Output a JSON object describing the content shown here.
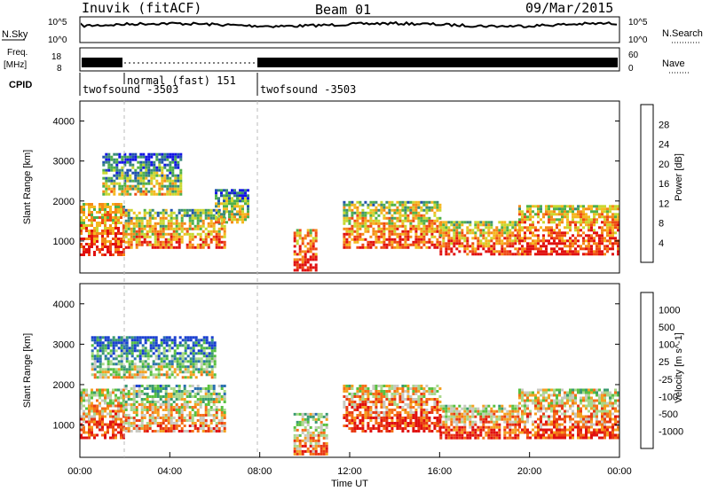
{
  "header": {
    "station": "Inuvik (fitACF)",
    "beam": "Beam 01",
    "date": "09/Mar/2015"
  },
  "top_panels": {
    "nsky_label": "N.Sky",
    "nsearch_label": "N.Search",
    "nsky_ticks": [
      "10^5",
      "10^0"
    ],
    "nsearch_ticks": [
      "10^5",
      "10^0"
    ],
    "freq_label_1": "Freq.",
    "freq_label_2": "[MHz]",
    "freq_ticks": [
      "18",
      "8"
    ],
    "nave_label": "Nave",
    "nave_ticks": [
      "60",
      "0"
    ],
    "cpid_label": "CPID",
    "cpid_segments": [
      {
        "text": "twofsound -3503"
      },
      {
        "text": "normal (fast) 151"
      },
      {
        "text": "twofsound -3503"
      }
    ]
  },
  "chart_data": [
    {
      "type": "heatmap",
      "title": "",
      "ylabel": "Slant Range [km]",
      "xlabel": "",
      "ylim": [
        200,
        4500
      ],
      "xlim": [
        "00:00",
        "24:00"
      ],
      "y_ticks": [
        "1000",
        "2000",
        "3000",
        "4000"
      ],
      "colorbar": {
        "label": "Power [dB]",
        "ticks": [
          "4",
          "8",
          "12",
          "16",
          "20",
          "24",
          "28"
        ],
        "colors": [
          "#1414e6",
          "#2050b0",
          "#3a8a7a",
          "#4fb04a",
          "#c8d830",
          "#f5b820",
          "#f58a18",
          "#ee4a14",
          "#e01010"
        ]
      },
      "patches": [
        {
          "t": [
            0.0,
            2.0
          ],
          "r": [
            650,
            1950
          ],
          "level": 0.75
        },
        {
          "t": [
            2.0,
            6.5
          ],
          "r": [
            850,
            1800
          ],
          "level": 0.6
        },
        {
          "t": [
            1.0,
            4.5
          ],
          "r": [
            2200,
            3200
          ],
          "level": 0.35
        },
        {
          "t": [
            6.0,
            7.5
          ],
          "r": [
            1500,
            2300
          ],
          "level": 0.4
        },
        {
          "t": [
            9.5,
            10.5
          ],
          "r": [
            250,
            1300
          ],
          "level": 0.85
        },
        {
          "t": [
            11.7,
            16.0
          ],
          "r": [
            850,
            2000
          ],
          "level": 0.65
        },
        {
          "t": [
            16.0,
            19.5
          ],
          "r": [
            700,
            1500
          ],
          "level": 0.7
        },
        {
          "t": [
            19.5,
            24.0
          ],
          "r": [
            700,
            1900
          ],
          "level": 0.75
        }
      ]
    },
    {
      "type": "heatmap",
      "title": "",
      "ylabel": "Slant Range [km]",
      "xlabel": "Time UT",
      "ylim": [
        200,
        4500
      ],
      "xlim": [
        "00:00",
        "24:00"
      ],
      "x_ticks": [
        "00:00",
        "04:00",
        "08:00",
        "12:00",
        "16:00",
        "20:00",
        "00:00"
      ],
      "y_ticks": [
        "1000",
        "2000",
        "3000",
        "4000"
      ],
      "colorbar": {
        "label": "Velocity [m s^-1]",
        "ticks": [
          "1000",
          "500",
          "100",
          "25",
          "-25",
          "-100",
          "-500",
          "-1000"
        ],
        "colors": [
          "#1a3fd0",
          "#2a70b0",
          "#3a9a70",
          "#58c040",
          "#a8d88a",
          "#c8c8c0",
          "#f5a020",
          "#f57018",
          "#e83a14",
          "#e01010"
        ]
      },
      "patches": [
        {
          "t": [
            0.0,
            2.0
          ],
          "r": [
            650,
            1900
          ],
          "level": 0.7
        },
        {
          "t": [
            2.0,
            6.5
          ],
          "r": [
            850,
            2000
          ],
          "level": 0.55
        },
        {
          "t": [
            0.5,
            6.0
          ],
          "r": [
            2200,
            3200
          ],
          "level": 0.3
        },
        {
          "t": [
            9.5,
            11.0
          ],
          "r": [
            300,
            1300
          ],
          "level": 0.6
        },
        {
          "t": [
            11.7,
            16.0
          ],
          "r": [
            850,
            2000
          ],
          "level": 0.75
        },
        {
          "t": [
            16.0,
            19.5
          ],
          "r": [
            700,
            1500
          ],
          "level": 0.72
        },
        {
          "t": [
            19.5,
            24.0
          ],
          "r": [
            700,
            1900
          ],
          "level": 0.68
        }
      ]
    }
  ]
}
